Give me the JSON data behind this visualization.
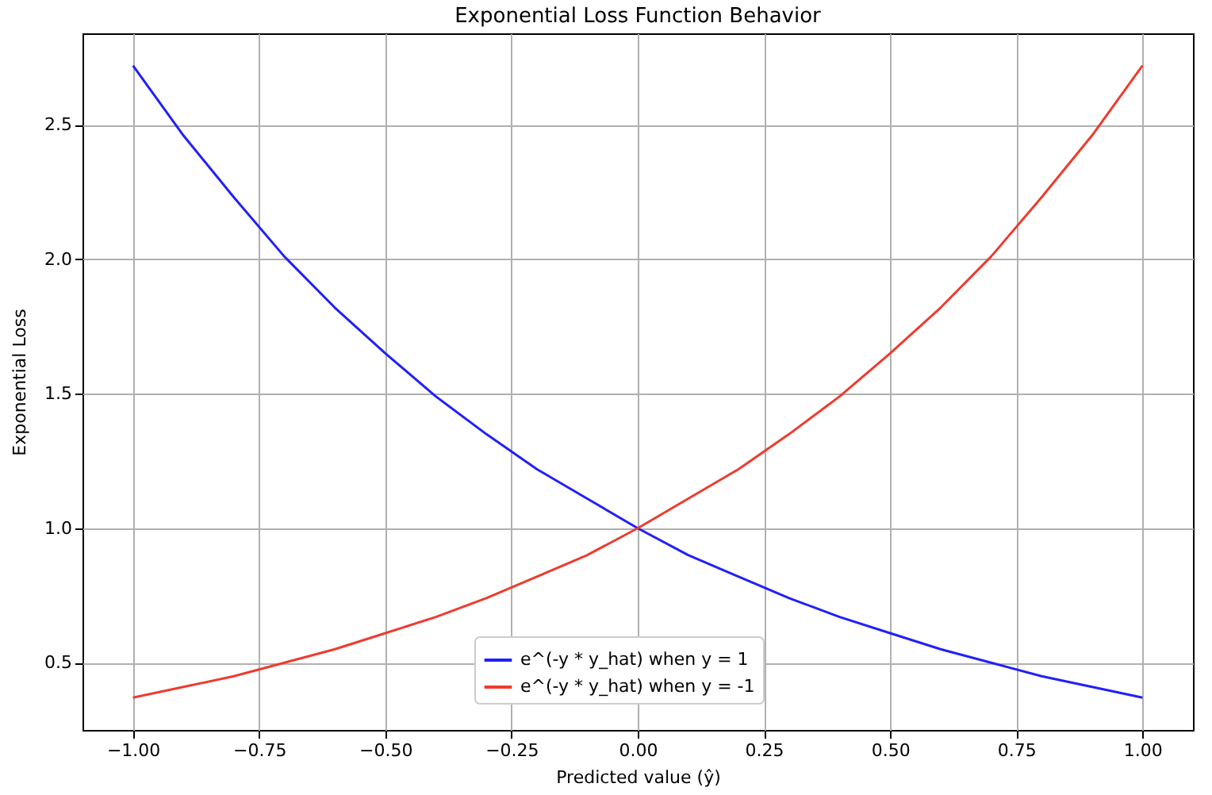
{
  "chart_data": {
    "type": "line",
    "title": "Exponential Loss Function Behavior",
    "xlabel": "Predicted value (ŷ)",
    "ylabel": "Exponential Loss",
    "x": [
      -1,
      -0.9,
      -0.8,
      -0.7,
      -0.6,
      -0.5,
      -0.4,
      -0.3,
      -0.2,
      -0.1,
      0,
      0.1,
      0.2,
      0.3,
      0.4,
      0.5,
      0.6,
      0.7,
      0.8,
      0.9,
      1
    ],
    "series": [
      {
        "name": "e^(-y * y_hat) when y = 1",
        "color": "#2020f8",
        "values": [
          2.72,
          2.46,
          2.23,
          2.01,
          1.82,
          1.65,
          1.49,
          1.35,
          1.22,
          1.11,
          1.0,
          0.9,
          0.82,
          0.74,
          0.67,
          0.61,
          0.55,
          0.5,
          0.45,
          0.41,
          0.37
        ]
      },
      {
        "name": "e^(-y * y_hat) when y = -1",
        "color": "#ee3b2e",
        "values": [
          0.37,
          0.41,
          0.45,
          0.5,
          0.55,
          0.61,
          0.67,
          0.74,
          0.82,
          0.9,
          1.0,
          1.11,
          1.22,
          1.35,
          1.49,
          1.65,
          1.82,
          2.01,
          2.23,
          2.46,
          2.72
        ]
      }
    ],
    "xlim": [
      -1.1,
      1.1
    ],
    "ylim": [
      0.25,
      2.84
    ],
    "xticks": [
      {
        "value": -1,
        "label": "−1.00"
      },
      {
        "value": -0.75,
        "label": "−0.75"
      },
      {
        "value": -0.5,
        "label": "−0.50"
      },
      {
        "value": -0.25,
        "label": "−0.25"
      },
      {
        "value": 0,
        "label": "0.00"
      },
      {
        "value": 0.25,
        "label": "0.25"
      },
      {
        "value": 0.5,
        "label": "0.50"
      },
      {
        "value": 0.75,
        "label": "0.75"
      },
      {
        "value": 1,
        "label": "1.00"
      }
    ],
    "yticks": [
      {
        "value": 0.5,
        "label": "0.5"
      },
      {
        "value": 1,
        "label": "1.0"
      },
      {
        "value": 1.5,
        "label": "1.5"
      },
      {
        "value": 2,
        "label": "2.0"
      },
      {
        "value": 2.5,
        "label": "2.5"
      }
    ],
    "grid": true,
    "legend": "bottom",
    "marker": "none",
    "line_style": "solid"
  }
}
